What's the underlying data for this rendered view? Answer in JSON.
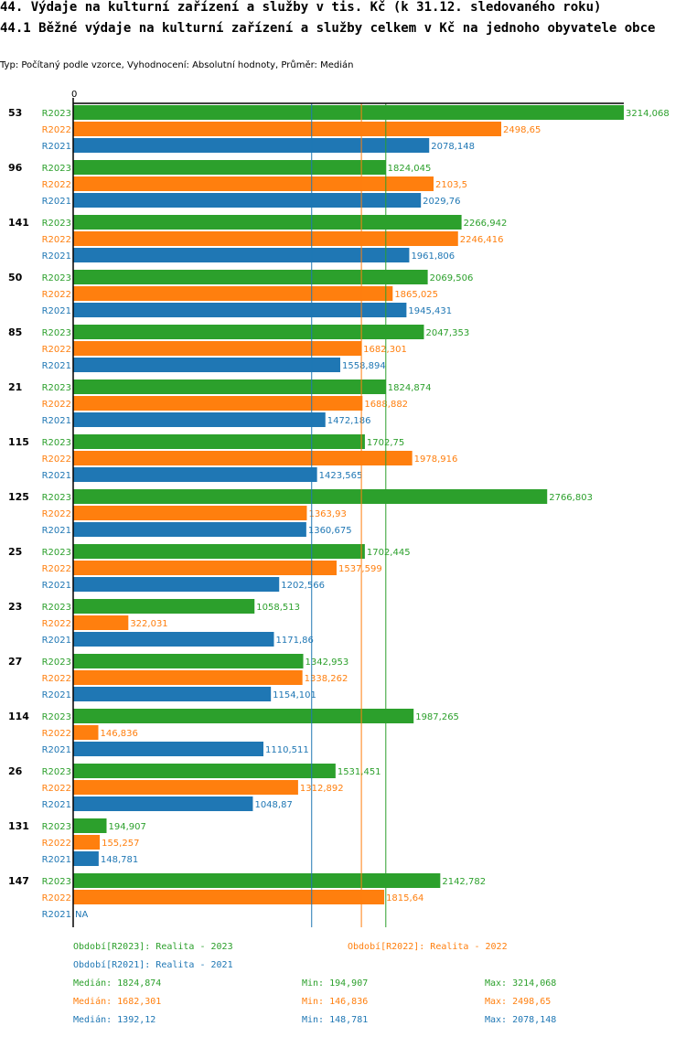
{
  "title_line1": "44. Výdaje na kulturní zařízení a služby v tis. Kč (k 31.12. sledovaného roku)",
  "title_line2": "44.1 Běžné výdaje na kulturní zařízení a služby celkem v Kč na jednoho obyvatele obce",
  "subtitle": "Typ: Počítaný podle vzorce, Vyhodnocení: Absolutní hodnoty, Průměr: Medián",
  "colors": {
    "R2023": "#2ca02c",
    "R2022": "#ff7f0e",
    "R2021": "#1f77b4"
  },
  "chart_data": {
    "type": "bar",
    "orientation": "horizontal",
    "title": "44.1 Běžné výdaje na kulturní zařízení a služby celkem v Kč na jednoho obyvatele obce",
    "xlabel": "",
    "ylabel": "",
    "xlim": [
      0,
      3214.068
    ],
    "zero_tick": "0",
    "series_names": [
      "R2023",
      "R2022",
      "R2021"
    ],
    "groups": [
      {
        "name": "53",
        "values": [
          3214.068,
          2498.65,
          2078.148
        ],
        "labels": [
          "3214,068",
          "2498,65",
          "2078,148"
        ]
      },
      {
        "name": "96",
        "values": [
          1824.045,
          2103.5,
          2029.76
        ],
        "labels": [
          "1824,045",
          "2103,5",
          "2029,76"
        ]
      },
      {
        "name": "141",
        "values": [
          2266.942,
          2246.416,
          1961.806
        ],
        "labels": [
          "2266,942",
          "2246,416",
          "1961,806"
        ]
      },
      {
        "name": "50",
        "values": [
          2069.506,
          1865.025,
          1945.431
        ],
        "labels": [
          "2069,506",
          "1865,025",
          "1945,431"
        ]
      },
      {
        "name": "85",
        "values": [
          2047.353,
          1682.301,
          1558.894
        ],
        "labels": [
          "2047,353",
          "1682,301",
          "1558,894"
        ]
      },
      {
        "name": "21",
        "values": [
          1824.874,
          1688.882,
          1472.186
        ],
        "labels": [
          "1824,874",
          "1688,882",
          "1472,186"
        ]
      },
      {
        "name": "115",
        "values": [
          1702.75,
          1978.916,
          1423.565
        ],
        "labels": [
          "1702,75",
          "1978,916",
          "1423,565"
        ]
      },
      {
        "name": "125",
        "values": [
          2766.803,
          1363.93,
          1360.675
        ],
        "labels": [
          "2766,803",
          "1363,93",
          "1360,675"
        ]
      },
      {
        "name": "25",
        "values": [
          1702.445,
          1537.599,
          1202.566
        ],
        "labels": [
          "1702,445",
          "1537,599",
          "1202,566"
        ]
      },
      {
        "name": "23",
        "values": [
          1058.513,
          322.031,
          1171.86
        ],
        "labels": [
          "1058,513",
          "322,031",
          "1171,86"
        ]
      },
      {
        "name": "27",
        "values": [
          1342.953,
          1338.262,
          1154.101
        ],
        "labels": [
          "1342,953",
          "1338,262",
          "1154,101"
        ]
      },
      {
        "name": "114",
        "values": [
          1987.265,
          146.836,
          1110.511
        ],
        "labels": [
          "1987,265",
          "146,836",
          "1110,511"
        ]
      },
      {
        "name": "26",
        "values": [
          1531.451,
          1312.892,
          1048.87
        ],
        "labels": [
          "1531,451",
          "1312,892",
          "1048,87"
        ]
      },
      {
        "name": "131",
        "values": [
          194.907,
          155.257,
          148.781
        ],
        "labels": [
          "194,907",
          "155,257",
          "148,781"
        ]
      },
      {
        "name": "147",
        "values": [
          2142.782,
          1815.64,
          null
        ],
        "labels": [
          "2142,782",
          "1815,64",
          "NA"
        ]
      }
    ],
    "median_lines": [
      {
        "series": "R2023",
        "value": 1824.874
      },
      {
        "series": "R2022",
        "value": 1682.301
      },
      {
        "series": "R2021",
        "value": 1392.12
      }
    ]
  },
  "legend": {
    "r2023": "Období[R2023]: Realita - 2023",
    "r2022": "Období[R2022]: Realita - 2022",
    "r2021": "Období[R2021]: Realita - 2021"
  },
  "stats": {
    "r2023": {
      "median": "Medián: 1824,874",
      "min": "Min: 194,907",
      "max": "Max: 3214,068"
    },
    "r2022": {
      "median": "Medián: 1682,301",
      "min": "Min: 146,836",
      "max": "Max: 2498,65"
    },
    "r2021": {
      "median": "Medián: 1392,12",
      "min": "Min: 148,781",
      "max": "Max: 2078,148"
    }
  }
}
